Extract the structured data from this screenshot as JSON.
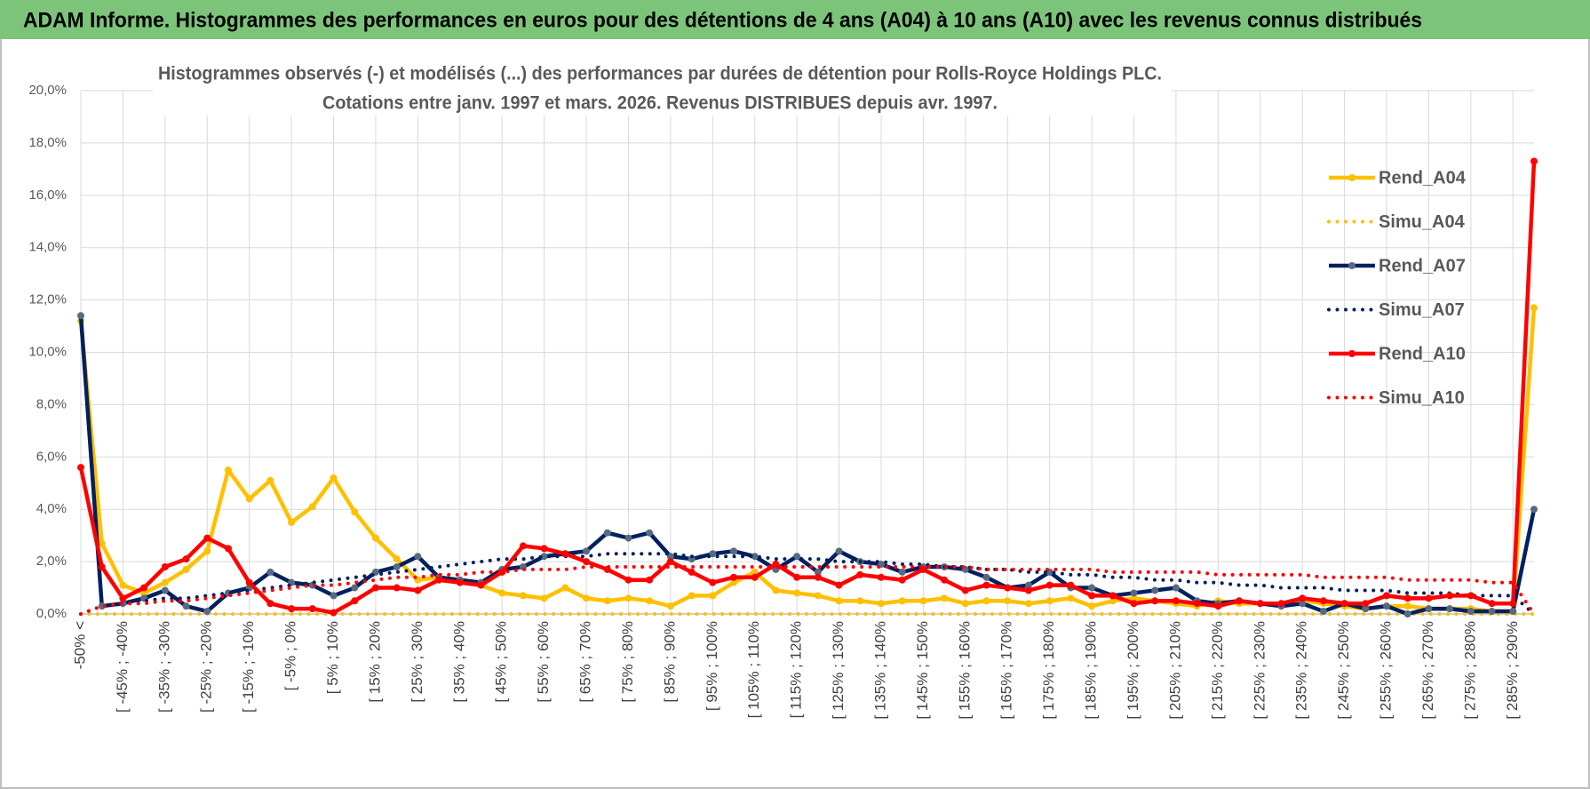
{
  "header": {
    "title": "ADAM Informe. Histogrammes des performances en euros pour des détentions de 4 ans (A04) à 10 ans (A10) avec les revenus connus distribués"
  },
  "chart_data": {
    "type": "line",
    "title": "Histogrammes observés (-) et modélisés (...) des performances par durées de détention pour Rolls-Royce Holdings PLC.",
    "subtitle": "Cotations entre janv. 1997 et mars. 2026. Revenus DISTRIBUES depuis avr. 1997.",
    "categories": [
      "-50% <",
      null,
      "[ -45% ; -40%",
      null,
      "[ -35% ; -30%",
      null,
      "[ -25% ; -20%",
      null,
      "[ -15% ; -10%",
      null,
      "[ -5% ; 0%",
      null,
      "[ 5% ; 10%",
      null,
      "[ 15% ; 20%",
      null,
      "[ 25% ; 30%",
      null,
      "[ 35% ; 40%",
      null,
      "[ 45% ; 50%",
      null,
      "[ 55% ; 60%",
      null,
      "[ 65% ; 70%",
      null,
      "[ 75% ; 80%",
      null,
      "[ 85% ; 90%",
      null,
      "[ 95% ; 100%",
      null,
      "[ 105% ; 110%",
      null,
      "[ 115% ; 120%",
      null,
      "[ 125% ; 130%",
      null,
      "[ 135% ; 140%",
      null,
      "[ 145% ; 150%",
      null,
      "[ 155% ; 160%",
      null,
      "[ 165% ; 170%",
      null,
      "[ 175% ; 180%",
      null,
      "[ 185% ; 190%",
      null,
      "[ 195% ; 200%",
      null,
      "[ 205% ; 210%",
      null,
      "[ 215% ; 220%",
      null,
      "[ 225% ; 230%",
      null,
      "[ 235% ; 240%",
      null,
      "[ 245% ; 250%",
      null,
      "[ 255% ; 260%",
      null,
      "[ 265% ; 270%",
      null,
      "[ 275% ; 280%",
      null,
      "[ 285% ; 290%",
      null
    ],
    "series": [
      {
        "name": "Rend_A04",
        "color": "#ffc000",
        "style": "solid",
        "markers": true,
        "marker_color": "#ffc000",
        "values": [
          11.2,
          2.7,
          1.1,
          0.8,
          1.2,
          1.7,
          2.4,
          5.5,
          4.4,
          5.1,
          3.5,
          4.1,
          5.2,
          3.9,
          2.9,
          2.1,
          1.3,
          1.4,
          1.3,
          1.1,
          0.8,
          0.7,
          0.6,
          1.0,
          0.6,
          0.5,
          0.6,
          0.5,
          0.3,
          0.7,
          0.7,
          1.2,
          1.6,
          0.9,
          0.8,
          0.7,
          0.5,
          0.5,
          0.4,
          0.5,
          0.5,
          0.6,
          0.4,
          0.5,
          0.5,
          0.4,
          0.5,
          0.6,
          0.3,
          0.5,
          0.6,
          0.5,
          0.4,
          0.3,
          0.5,
          0.4,
          0.4,
          0.3,
          0.5,
          0.4,
          0.3,
          0.2,
          0.3,
          0.3,
          0.2,
          0.2,
          0.2,
          0.1,
          0.1,
          11.7
        ]
      },
      {
        "name": "Simu_A04",
        "color": "#ffc000",
        "style": "dotted",
        "markers": false,
        "values": [
          0,
          0,
          0,
          0,
          0,
          0,
          0,
          0,
          0,
          0,
          0,
          0,
          0,
          0,
          0,
          0,
          0,
          0,
          0,
          0,
          0,
          0,
          0,
          0,
          0,
          0,
          0,
          0,
          0,
          0,
          0,
          0,
          0,
          0,
          0,
          0,
          0,
          0,
          0,
          0,
          0,
          0,
          0,
          0,
          0,
          0,
          0,
          0,
          0,
          0,
          0,
          0,
          0,
          0,
          0,
          0,
          0,
          0,
          0,
          0,
          0,
          0,
          0,
          0,
          0,
          0,
          0,
          0,
          0,
          0
        ]
      },
      {
        "name": "Rend_A07",
        "color": "#002060",
        "style": "solid",
        "markers": true,
        "marker_color": "#586a80",
        "values": [
          11.4,
          0.3,
          0.4,
          0.6,
          0.9,
          0.3,
          0.1,
          0.8,
          1.0,
          1.6,
          1.2,
          1.1,
          0.7,
          1.0,
          1.6,
          1.8,
          2.2,
          1.4,
          1.3,
          1.2,
          1.7,
          1.8,
          2.2,
          2.3,
          2.4,
          3.1,
          2.9,
          3.1,
          2.2,
          2.1,
          2.3,
          2.4,
          2.2,
          1.7,
          2.2,
          1.6,
          2.4,
          2.0,
          1.9,
          1.6,
          1.8,
          1.8,
          1.7,
          1.4,
          1.0,
          1.1,
          1.6,
          1.0,
          1.0,
          0.7,
          0.8,
          0.9,
          1.0,
          0.5,
          0.4,
          0.5,
          0.4,
          0.3,
          0.4,
          0.1,
          0.4,
          0.2,
          0.3,
          0.0,
          0.2,
          0.2,
          0.1,
          0.1,
          0.1,
          4.0
        ]
      },
      {
        "name": "Simu_A07",
        "color": "#002060",
        "style": "dotted",
        "markers": false,
        "values": [
          0,
          0.3,
          0.4,
          0.5,
          0.6,
          0.6,
          0.7,
          0.8,
          0.9,
          1.0,
          1.1,
          1.2,
          1.3,
          1.4,
          1.5,
          1.6,
          1.7,
          1.8,
          1.9,
          2.0,
          2.1,
          2.1,
          2.2,
          2.2,
          2.2,
          2.3,
          2.3,
          2.3,
          2.3,
          2.2,
          2.2,
          2.2,
          2.2,
          2.1,
          2.1,
          2.1,
          2.0,
          2.0,
          2.0,
          1.9,
          1.9,
          1.8,
          1.8,
          1.7,
          1.7,
          1.6,
          1.6,
          1.5,
          1.5,
          1.4,
          1.4,
          1.3,
          1.3,
          1.2,
          1.2,
          1.1,
          1.1,
          1.0,
          1.0,
          1.0,
          0.9,
          0.9,
          0.9,
          0.8,
          0.8,
          0.8,
          0.7,
          0.7,
          0.7,
          0
        ]
      },
      {
        "name": "Rend_A10",
        "color": "#ff0000",
        "style": "solid",
        "markers": true,
        "marker_color": "#ff0000",
        "values": [
          5.6,
          1.8,
          0.6,
          1.0,
          1.8,
          2.1,
          2.9,
          2.5,
          1.2,
          0.4,
          0.2,
          0.2,
          0.05,
          0.5,
          1.0,
          1.0,
          0.9,
          1.3,
          1.2,
          1.1,
          1.6,
          2.6,
          2.5,
          2.3,
          2.0,
          1.7,
          1.3,
          1.3,
          2.0,
          1.6,
          1.2,
          1.4,
          1.4,
          1.9,
          1.4,
          1.4,
          1.1,
          1.5,
          1.4,
          1.3,
          1.7,
          1.3,
          0.9,
          1.1,
          1.0,
          0.9,
          1.1,
          1.1,
          0.7,
          0.7,
          0.4,
          0.5,
          0.5,
          0.4,
          0.3,
          0.5,
          0.4,
          0.4,
          0.6,
          0.5,
          0.4,
          0.4,
          0.7,
          0.6,
          0.6,
          0.7,
          0.7,
          0.4,
          0.4,
          17.3
        ]
      },
      {
        "name": "Simu_A10",
        "color": "#ff0000",
        "style": "dotted",
        "markers": false,
        "values": [
          0,
          0.3,
          0.4,
          0.4,
          0.5,
          0.5,
          0.6,
          0.7,
          0.8,
          0.9,
          1.0,
          1.1,
          1.1,
          1.2,
          1.3,
          1.4,
          1.4,
          1.5,
          1.5,
          1.6,
          1.6,
          1.7,
          1.7,
          1.7,
          1.8,
          1.8,
          1.8,
          1.8,
          1.8,
          1.8,
          1.8,
          1.8,
          1.8,
          1.8,
          1.8,
          1.8,
          1.8,
          1.8,
          1.8,
          1.8,
          1.8,
          1.8,
          1.8,
          1.7,
          1.7,
          1.7,
          1.7,
          1.7,
          1.7,
          1.6,
          1.6,
          1.6,
          1.6,
          1.6,
          1.5,
          1.5,
          1.5,
          1.5,
          1.5,
          1.4,
          1.4,
          1.4,
          1.4,
          1.3,
          1.3,
          1.3,
          1.3,
          1.2,
          1.2,
          0
        ]
      }
    ],
    "ylim": [
      0,
      20
    ],
    "yticks": [
      {
        "value": 0,
        "label": "0,0%"
      },
      {
        "value": 2,
        "label": "2,0%"
      },
      {
        "value": 4,
        "label": "4,0%"
      },
      {
        "value": 6,
        "label": "6,0%"
      },
      {
        "value": 8,
        "label": "8,0%"
      },
      {
        "value": 10,
        "label": "10,0%"
      },
      {
        "value": 12,
        "label": "12,0%"
      },
      {
        "value": 14,
        "label": "14,0%"
      },
      {
        "value": 16,
        "label": "16,0%"
      },
      {
        "value": 18,
        "label": "18,0%"
      },
      {
        "value": 20,
        "label": "20,0%"
      }
    ],
    "grid": true,
    "legend_position": "right"
  }
}
